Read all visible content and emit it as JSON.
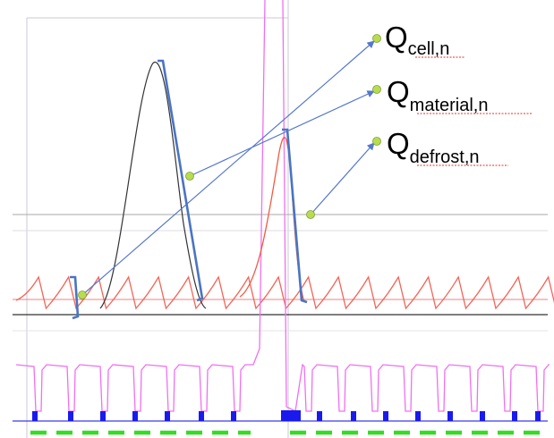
{
  "labels": {
    "cell": {
      "main": "Q",
      "sub": "cell,n"
    },
    "material": {
      "main": "Q",
      "sub": "material,n"
    },
    "defrost": {
      "main": "Q",
      "sub": "defrost,n"
    }
  },
  "colors": {
    "temperature_trace": "#f0665a",
    "power_trace": "#f070f0",
    "defrost_peak": "#f05a40",
    "material_peak": "#333333",
    "bracket": "#4a74c4",
    "arrow": "#5577cc",
    "marker": "#b8dc50",
    "state_blocks": "#1a1aee",
    "dashed_signal": "#33dd22",
    "grid": "#bbbbcc"
  }
}
